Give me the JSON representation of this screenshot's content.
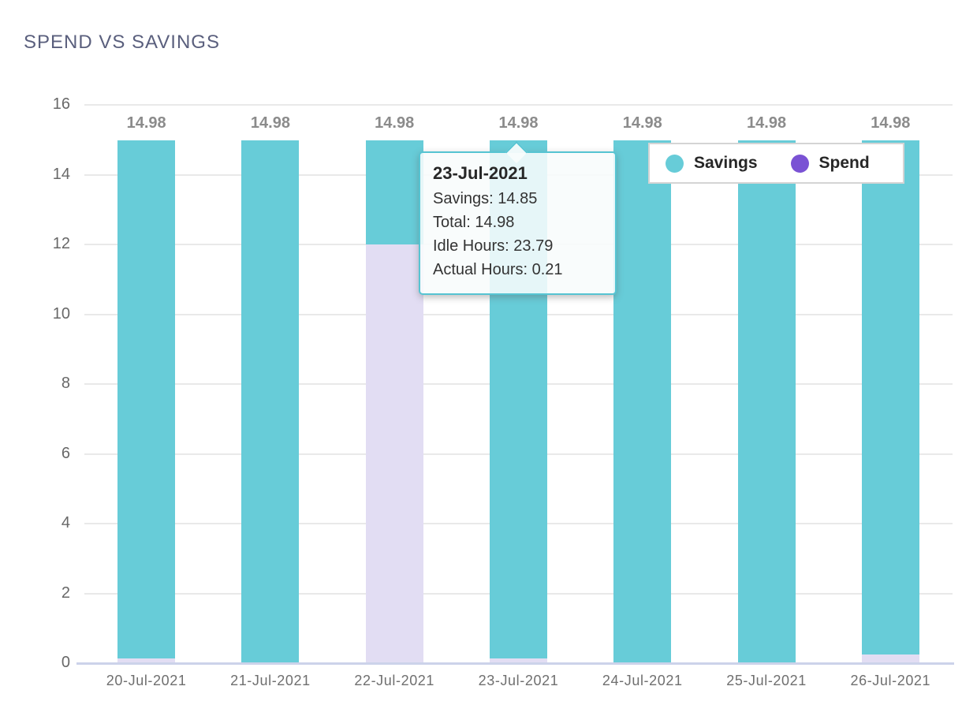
{
  "page": {
    "title": "SPEND VS SAVINGS"
  },
  "chart_data": {
    "type": "bar",
    "stacked": true,
    "title": "SPEND VS SAVINGS",
    "categories": [
      "20-Jul-2021",
      "21-Jul-2021",
      "22-Jul-2021",
      "23-Jul-2021",
      "24-Jul-2021",
      "25-Jul-2021",
      "26-Jul-2021"
    ],
    "series": [
      {
        "name": "Savings",
        "legend_color": "#67ccd8",
        "fill": "#67ccd8",
        "values": [
          14.85,
          14.98,
          2.98,
          14.85,
          14.98,
          14.98,
          14.73
        ]
      },
      {
        "name": "Spend",
        "legend_color": "#7a52d4",
        "fill": "#e2ddf3",
        "values": [
          0.13,
          0,
          12.0,
          0.13,
          0,
          0,
          0.25
        ]
      }
    ],
    "totals": [
      14.98,
      14.98,
      14.98,
      14.98,
      14.98,
      14.98,
      14.98
    ],
    "bar_labels": [
      "14.98",
      "14.98",
      "14.98",
      "14.98",
      "14.98",
      "14.98",
      "14.98"
    ],
    "ylim": [
      0,
      16
    ],
    "yticks": [
      0,
      2,
      4,
      6,
      8,
      10,
      12,
      14,
      16
    ],
    "grid": "horizontal",
    "legend_position": "top-right"
  },
  "legend": {
    "items": [
      {
        "label": "Savings",
        "color": "#67ccd8"
      },
      {
        "label": "Spend",
        "color": "#7a52d4"
      }
    ]
  },
  "tooltip": {
    "title": "23-Jul-2021",
    "lines": [
      "Savings: 14.85",
      "Total: 14.98",
      "Idle Hours: 23.79",
      "Actual Hours: 0.21"
    ]
  },
  "colors": {
    "savings_bar": "#67ccd8",
    "spend_bar_fill": "#e2ddf3",
    "spend_legend": "#7a52d4",
    "tooltip_border": "#56c4d2",
    "gridline": "#e9e9e9",
    "zero_line": "#ccd3ea",
    "title_text": "#5a5f7d",
    "axis_text": "#6f6f6f",
    "bar_label_text": "#8b8b8b"
  }
}
